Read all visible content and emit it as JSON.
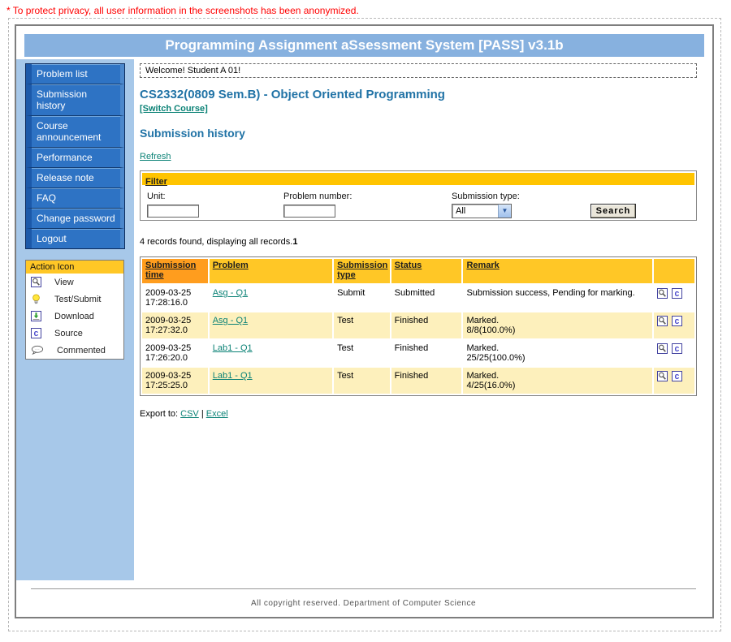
{
  "privacy_notice": "* To protect privacy, all user information in the screenshots has been anonymized.",
  "header": {
    "title": "Programming Assignment aSsessment System [PASS] v3.1b"
  },
  "sidebar": {
    "items": [
      "Problem list",
      "Submission history",
      "Course announcement",
      "Performance",
      "Release note",
      "FAQ",
      "Change password",
      "Logout"
    ]
  },
  "legend": {
    "title": "Action Icon",
    "items": [
      {
        "icon": "magnifier-icon",
        "label": "View"
      },
      {
        "icon": "bulb-icon",
        "label": "Test/Submit"
      },
      {
        "icon": "download-icon",
        "label": "Download"
      },
      {
        "icon": "source-icon",
        "label": "Source"
      },
      {
        "icon": "comment-icon",
        "label": "Commented"
      }
    ]
  },
  "content": {
    "welcome": "Welcome! Student A 01!",
    "course_title": "CS2332(0809 Sem.B) - Object Oriented Programming",
    "switch_course": "[Switch Course]",
    "page_title": "Submission history",
    "refresh": "Refresh",
    "filter": {
      "title": "Filter",
      "unit_label": "Unit:",
      "unit_value": "",
      "problem_label": "Problem number:",
      "problem_value": "",
      "type_label": "Submission type:",
      "type_value": "All",
      "search_label": "Search"
    },
    "records_summary": "4 records found, displaying all records.",
    "page_number": "1",
    "table": {
      "columns": [
        "Submission time",
        "Problem",
        "Submission type",
        "Status",
        "Remark",
        ""
      ],
      "rows": [
        {
          "time": "2009-03-25 17:28:16.0",
          "problem": "Asg - Q1",
          "type": "Submit",
          "status": "Submitted",
          "remark": [
            "Submission success, Pending for marking."
          ],
          "icons": [
            "magnifier-icon",
            "source-icon"
          ]
        },
        {
          "time": "2009-03-25 17:27:32.0",
          "problem": "Asg - Q1",
          "type": "Test",
          "status": "Finished",
          "remark": [
            "Marked.",
            "8/8(100.0%)"
          ],
          "icons": [
            "magnifier-icon",
            "source-icon"
          ]
        },
        {
          "time": "2009-03-25 17:26:20.0",
          "problem": "Lab1 - Q1",
          "type": "Test",
          "status": "Finished",
          "remark": [
            "Marked.",
            "25/25(100.0%)"
          ],
          "icons": [
            "magnifier-icon",
            "source-icon"
          ]
        },
        {
          "time": "2009-03-25 17:25:25.0",
          "problem": "Lab1 - Q1",
          "type": "Test",
          "status": "Finished",
          "remark": [
            "Marked.",
            "4/25(16.0%)"
          ],
          "icons": [
            "magnifier-icon",
            "source-icon"
          ]
        }
      ]
    },
    "export_label": "Export to:",
    "export_separator": "|",
    "export_links": [
      "CSV",
      "Excel"
    ]
  },
  "footer": {
    "text": "All copyright reserved. Department of Computer Science"
  },
  "colors": {
    "notice_red": "#FF0000",
    "header_blue": "#87B1DF",
    "sidebar_blue": "#A7C8E9",
    "nav_blue": "#2E73C4",
    "gold": "#FFC726",
    "gold2": "#FFC400",
    "orange": "#FF9D1E",
    "row_yellow": "#FDF0BC",
    "link_teal": "#0B8276",
    "heading_blue": "#2173A6"
  }
}
